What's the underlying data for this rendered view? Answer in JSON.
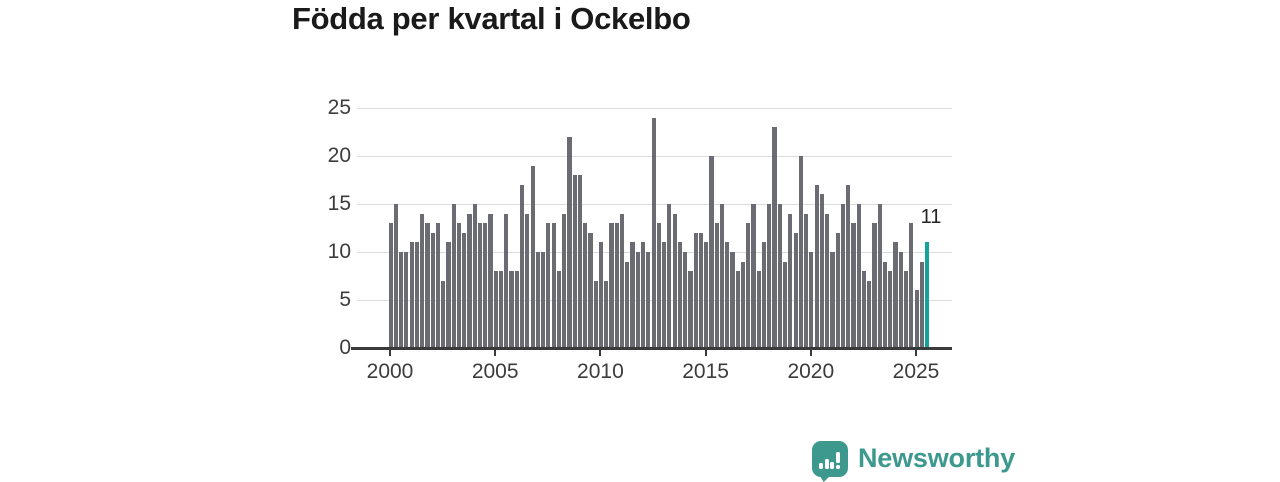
{
  "title": "Födda per kvartal i Ockelbo",
  "logo": {
    "wordmark": "Newsworthy",
    "icon": "newsworthy-speech-bubble-chart-icon"
  },
  "colors": {
    "bar": "#6b6b73",
    "highlight_bar": "#14a39b",
    "logo": "#3d998d",
    "gridline": "#dcdcdc",
    "axis_text": "#3c3c3c",
    "title_text": "#1a1a1a"
  },
  "chart_data": {
    "type": "bar",
    "title": "Födda per kvartal i Ockelbo",
    "frequency": "quarterly",
    "start_period": "2000 Q1",
    "end_period": "2025 Q3",
    "values": [
      13,
      15,
      10,
      10,
      11,
      11,
      14,
      13,
      12,
      13,
      7,
      11,
      15,
      13,
      12,
      14,
      15,
      13,
      13,
      14,
      8,
      8,
      14,
      8,
      8,
      17,
      14,
      19,
      10,
      10,
      13,
      13,
      8,
      14,
      22,
      18,
      18,
      13,
      12,
      7,
      11,
      7,
      13,
      13,
      14,
      9,
      11,
      10,
      11,
      10,
      24,
      13,
      11,
      15,
      14,
      11,
      10,
      8,
      12,
      12,
      11,
      20,
      13,
      15,
      11,
      10,
      8,
      9,
      13,
      15,
      8,
      11,
      15,
      23,
      15,
      9,
      14,
      12,
      20,
      14,
      10,
      17,
      16,
      14,
      10,
      12,
      15,
      17,
      13,
      15,
      8,
      7,
      13,
      15,
      9,
      8,
      11,
      10,
      8,
      13,
      6,
      9,
      11
    ],
    "highlight_last_bar": true,
    "highlight_label": "11",
    "x_tick_labels": [
      "2000",
      "2005",
      "2010",
      "2015",
      "2020",
      "2025"
    ],
    "y_tick_labels": [
      "0",
      "5",
      "10",
      "15",
      "20",
      "25"
    ],
    "y_tick_values": [
      0,
      5,
      10,
      15,
      20,
      25
    ],
    "ylim": [
      0,
      25
    ],
    "grid": true,
    "legend": "none",
    "xlabel": "",
    "ylabel": ""
  }
}
